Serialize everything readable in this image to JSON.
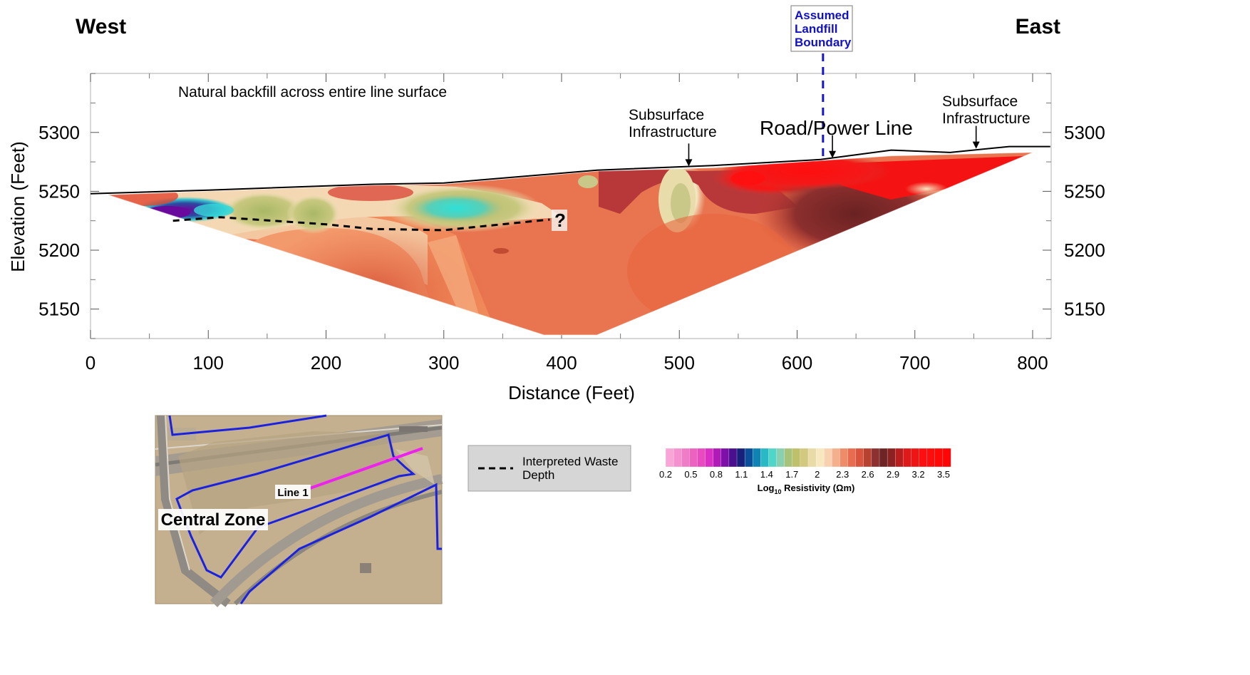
{
  "chart_data": {
    "type": "heatmap",
    "west_label": "West",
    "east_label": "East",
    "xlabel": "Distance (Feet)",
    "ylabel": "Elevation (Feet)",
    "xlim": [
      0,
      815
    ],
    "ylim": [
      5125,
      5355
    ],
    "x_ticks": [
      0,
      100,
      200,
      300,
      400,
      500,
      600,
      700,
      800
    ],
    "y_ticks": [
      5150,
      5200,
      5250,
      5300
    ],
    "grid": false,
    "ground_surface": [
      {
        "x": 0,
        "y": 5248
      },
      {
        "x": 100,
        "y": 5251
      },
      {
        "x": 240,
        "y": 5256
      },
      {
        "x": 300,
        "y": 5257
      },
      {
        "x": 430,
        "y": 5268
      },
      {
        "x": 530,
        "y": 5272
      },
      {
        "x": 620,
        "y": 5277
      },
      {
        "x": 680,
        "y": 5285
      },
      {
        "x": 730,
        "y": 5283
      },
      {
        "x": 780,
        "y": 5288
      },
      {
        "x": 815,
        "y": 5288
      }
    ],
    "section_outline": [
      {
        "x": 15,
        "y": 5247
      },
      {
        "x": 100,
        "y": 5250
      },
      {
        "x": 240,
        "y": 5255
      },
      {
        "x": 300,
        "y": 5256
      },
      {
        "x": 430,
        "y": 5267
      },
      {
        "x": 530,
        "y": 5270
      },
      {
        "x": 620,
        "y": 5276
      },
      {
        "x": 680,
        "y": 5280
      },
      {
        "x": 800,
        "y": 5283
      },
      {
        "x": 430,
        "y": 5128
      },
      {
        "x": 385,
        "y": 5128
      }
    ],
    "waste_depth": [
      {
        "x": 70,
        "y": 5225
      },
      {
        "x": 110,
        "y": 5228
      },
      {
        "x": 200,
        "y": 5222
      },
      {
        "x": 240,
        "y": 5218
      },
      {
        "x": 300,
        "y": 5217
      },
      {
        "x": 390,
        "y": 5226
      }
    ],
    "boundary_x": 622,
    "annotations": {
      "backfill": "Natural backfill across entire line surface",
      "infra_mid_1": "Subsurface",
      "infra_mid_2": "Infrastructure",
      "road": "Road/Power Line",
      "infra_east_1": "Subsurface",
      "infra_east_2": "Infrastructure",
      "question": "?",
      "boundary_1": "Assumed",
      "boundary_2": "Landfill",
      "boundary_3": "Boundary"
    },
    "arrows": [
      {
        "x": 508,
        "tip_y": 5270
      },
      {
        "x": 630,
        "tip_y": 5277
      },
      {
        "x": 752,
        "tip_y": 5285
      }
    ],
    "legend": {
      "waste_line_1": "Interpreted Waste",
      "waste_line_2": "Depth"
    },
    "colorbar": {
      "title_prefix": "Log",
      "title_sub": "10",
      "title_suffix": " Resistivity (Ωm)",
      "ticks": [
        "0.2",
        "0.5",
        "0.8",
        "1.1",
        "1.4",
        "1.7",
        "2",
        "2.3",
        "2.6",
        "2.9",
        "3.2",
        "3.5"
      ],
      "colors": [
        "#f7a6d6",
        "#f492cf",
        "#ef7cc6",
        "#eb62bf",
        "#e84ac0",
        "#d92fc4",
        "#b01ab6",
        "#7d10a6",
        "#4a0f8c",
        "#18207c",
        "#0b4f98",
        "#0f84b4",
        "#2ab8c4",
        "#4fd6c8",
        "#8ad0b0",
        "#a9c27a",
        "#bfc06a",
        "#d3c880",
        "#e9dba6",
        "#f8e8c0",
        "#f8d2b0",
        "#f4b08c",
        "#ee8c6a",
        "#e86c50",
        "#d8543c",
        "#b74232",
        "#8c3030",
        "#6e2424",
        "#8a2222",
        "#b81e1e",
        "#dc1a1a",
        "#f01414",
        "#fa1010",
        "#ff0c0c",
        "#ff0808",
        "#ff0606"
      ]
    },
    "inset": {
      "area_label": "Central Zone",
      "line_label": "Line 1",
      "colors": {
        "ground": "#c2ae8e",
        "boundary": "#1a22e0",
        "survey_line": "#ee22ee"
      }
    }
  }
}
